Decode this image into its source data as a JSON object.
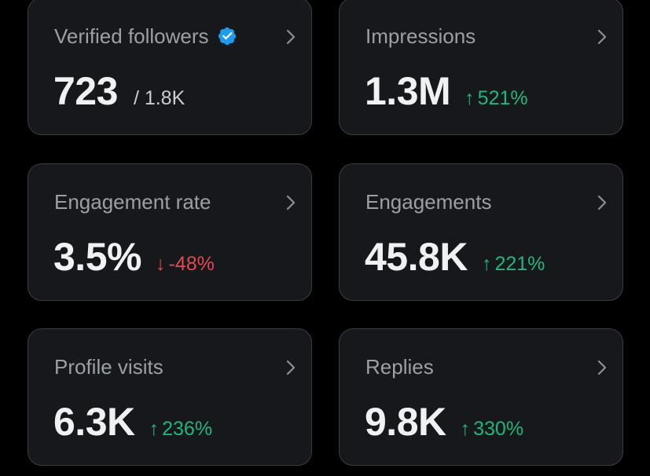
{
  "colors": {
    "background": "#000000",
    "card": "#16181c",
    "card_border": "#3a3d42",
    "label": "#9aa0a6",
    "value": "#eff1f3",
    "positive": "#1db87a",
    "negative": "#e5484d",
    "verified_badge": "#1d9bf0"
  },
  "cards": [
    {
      "label": "Verified followers",
      "value": "723",
      "sub": "/ 1.8K",
      "has_verified_badge": true,
      "icon": "chevron-right-icon"
    },
    {
      "label": "Impressions",
      "value": "1.3M",
      "delta_arrow": "↑",
      "delta": "521%",
      "trend": "up",
      "icon": "chevron-right-icon"
    },
    {
      "label": "Engagement rate",
      "value": "3.5%",
      "delta_arrow": "↓",
      "delta": "-48%",
      "trend": "down",
      "icon": "chevron-right-icon"
    },
    {
      "label": "Engagements",
      "value": "45.8K",
      "delta_arrow": "↑",
      "delta": "221%",
      "trend": "up",
      "icon": "chevron-right-icon"
    },
    {
      "label": "Profile visits",
      "value": "6.3K",
      "delta_arrow": "↑",
      "delta": "236%",
      "trend": "up",
      "icon": "chevron-right-icon"
    },
    {
      "label": "Replies",
      "value": "9.8K",
      "delta_arrow": "↑",
      "delta": "330%",
      "trend": "up",
      "icon": "chevron-right-icon"
    }
  ]
}
